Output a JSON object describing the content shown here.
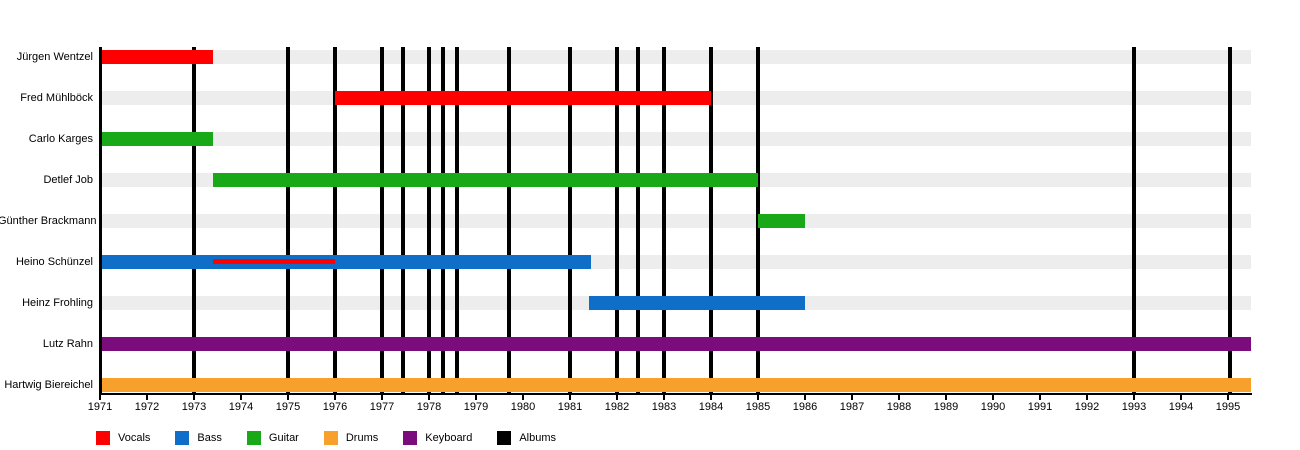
{
  "chart_data": {
    "type": "timeline",
    "title": "",
    "x_axis": {
      "min": 1971,
      "max": 1995.5,
      "tick_years": [
        1971,
        1972,
        1973,
        1974,
        1975,
        1976,
        1977,
        1978,
        1979,
        1980,
        1981,
        1982,
        1983,
        1984,
        1985,
        1986,
        1987,
        1988,
        1989,
        1990,
        1991,
        1992,
        1993,
        1994,
        1995
      ]
    },
    "members": [
      {
        "name": "Jürgen Wentzel",
        "segments": [
          {
            "role": "vocals",
            "start": 1971,
            "end": 1973.4
          }
        ]
      },
      {
        "name": "Fred Mühlböck",
        "segments": [
          {
            "role": "vocals",
            "start": 1976,
            "end": 1984
          }
        ]
      },
      {
        "name": "Carlo Karges",
        "segments": [
          {
            "role": "guitar",
            "start": 1971,
            "end": 1973.4
          }
        ]
      },
      {
        "name": "Detlef Job",
        "segments": [
          {
            "role": "guitar",
            "start": 1973.4,
            "end": 1985
          }
        ]
      },
      {
        "name": "Günther Brackmann",
        "segments": [
          {
            "role": "guitar",
            "start": 1985,
            "end": 1986
          }
        ]
      },
      {
        "name": "Heino Schünzel",
        "segments": [
          {
            "role": "bass",
            "start": 1971,
            "end": 1981.45
          },
          {
            "role": "vocals",
            "start": 1973.4,
            "end": 1976,
            "thin": true
          }
        ]
      },
      {
        "name": "Heinz Frohling",
        "segments": [
          {
            "role": "bass",
            "start": 1981.4,
            "end": 1986
          }
        ]
      },
      {
        "name": "Lutz Rahn",
        "segments": [
          {
            "role": "keyboard",
            "start": 1971,
            "end": 1995.5
          }
        ]
      },
      {
        "name": "Hartwig Biereichel",
        "segments": [
          {
            "role": "drums",
            "start": 1971,
            "end": 1995.5
          }
        ]
      }
    ],
    "album_line_years": [
      1973,
      1975,
      1976,
      1977,
      1977.45,
      1978,
      1978.3,
      1978.6,
      1979.7,
      1981,
      1982,
      1982.45,
      1983,
      1984,
      1985,
      1993,
      1995.05
    ],
    "legend": [
      {
        "label": "Vocals",
        "role": "vocals"
      },
      {
        "label": "Bass",
        "role": "bass"
      },
      {
        "label": "Guitar",
        "role": "guitar"
      },
      {
        "label": "Drums",
        "role": "drums"
      },
      {
        "label": "Keyboard",
        "role": "keyboard"
      },
      {
        "label": "Albums",
        "role": "albums"
      }
    ],
    "colors": {
      "vocals": "#FF0000",
      "bass": "#0F6FC8",
      "guitar": "#18A818",
      "drums": "#F7A02B",
      "keyboard": "#7B0C7B",
      "albums": "#000000",
      "row_track": "#EDEDED",
      "axis": "#000000",
      "text": "#000000"
    }
  }
}
